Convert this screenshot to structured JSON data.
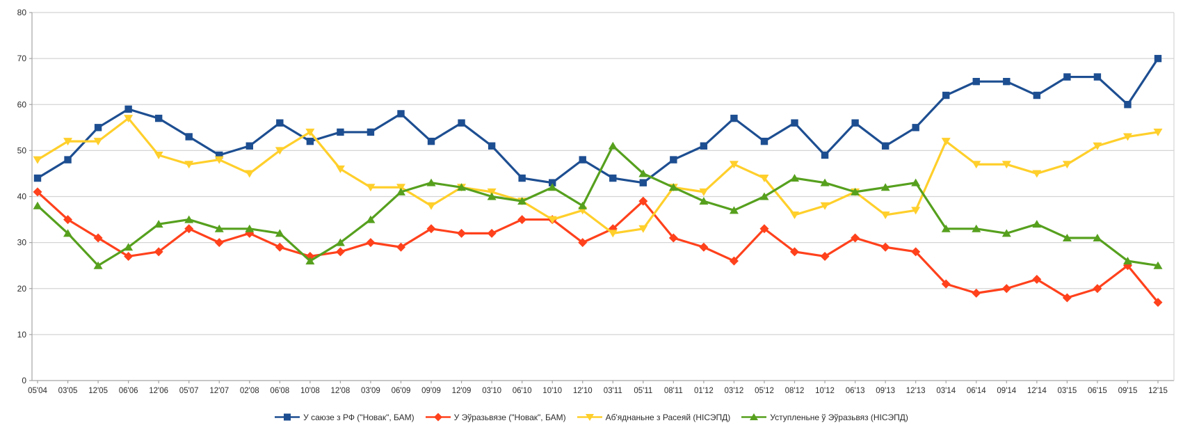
{
  "chart_data": {
    "type": "line",
    "title": "",
    "xlabel": "",
    "ylabel": "",
    "ylim": [
      0,
      80
    ],
    "ytick_step": 10,
    "grid": true,
    "legend_position": "bottom",
    "categories": [
      "05'04",
      "03'05",
      "12'05",
      "06'06",
      "12'06",
      "05'07",
      "12'07",
      "02'08",
      "06'08",
      "10'08",
      "12'08",
      "03'09",
      "06'09",
      "09'09",
      "12'09",
      "03'10",
      "06'10",
      "10'10",
      "12'10",
      "03'11",
      "05'11",
      "08'11",
      "01'12",
      "03'12",
      "05'12",
      "08'12",
      "10'12",
      "06'13",
      "09'13",
      "12'13",
      "03'14",
      "06'14",
      "09'14",
      "12'14",
      "03'15",
      "06'15",
      "09'15",
      "12'15"
    ],
    "series": [
      {
        "name": "У саюзе з РФ (\"Новак\", БАМ)",
        "color": "#1D4E91",
        "marker": "square",
        "values": [
          44,
          48,
          55,
          59,
          57,
          53,
          49,
          51,
          56,
          52,
          54,
          54,
          58,
          52,
          56,
          51,
          44,
          43,
          48,
          44,
          43,
          48,
          51,
          57,
          52,
          56,
          49,
          56,
          51,
          55,
          62,
          65,
          65,
          62,
          66,
          66,
          60,
          70
        ]
      },
      {
        "name": "У Эўразьвязе (\"Новак\", БАМ)",
        "color": "#FF411C",
        "marker": "diamond",
        "values": [
          41,
          35,
          31,
          27,
          28,
          33,
          30,
          32,
          29,
          27,
          28,
          30,
          29,
          33,
          32,
          32,
          35,
          35,
          30,
          33,
          39,
          31,
          29,
          26,
          33,
          28,
          27,
          31,
          29,
          28,
          21,
          19,
          20,
          22,
          18,
          20,
          25,
          17
        ]
      },
      {
        "name": "Аб'яднаньне з Расеяй (НІСЭПД)",
        "color": "#FFCF2B",
        "marker": "triangle-down",
        "values": [
          48,
          52,
          52,
          57,
          49,
          47,
          48,
          45,
          50,
          54,
          46,
          42,
          42,
          38,
          42,
          41,
          39,
          35,
          37,
          32,
          33,
          42,
          41,
          47,
          44,
          36,
          38,
          41,
          36,
          37,
          52,
          47,
          47,
          45,
          47,
          51,
          53,
          54
        ]
      },
      {
        "name": "Уступленьне ў Эўразьвяз (НІСЭПД)",
        "color": "#56A01E",
        "marker": "triangle-up",
        "values": [
          38,
          32,
          25,
          29,
          34,
          35,
          33,
          33,
          32,
          26,
          30,
          35,
          41,
          43,
          42,
          40,
          39,
          42,
          38,
          51,
          45,
          42,
          39,
          37,
          40,
          44,
          43,
          41,
          42,
          43,
          33,
          33,
          32,
          34,
          31,
          31,
          26,
          25
        ]
      }
    ],
    "style": {
      "grid_color": "#D4D4D4",
      "axis_color": "#A3A3A3",
      "tick_label_color": "#2B2B2B",
      "background": "#FFFFFF"
    }
  }
}
